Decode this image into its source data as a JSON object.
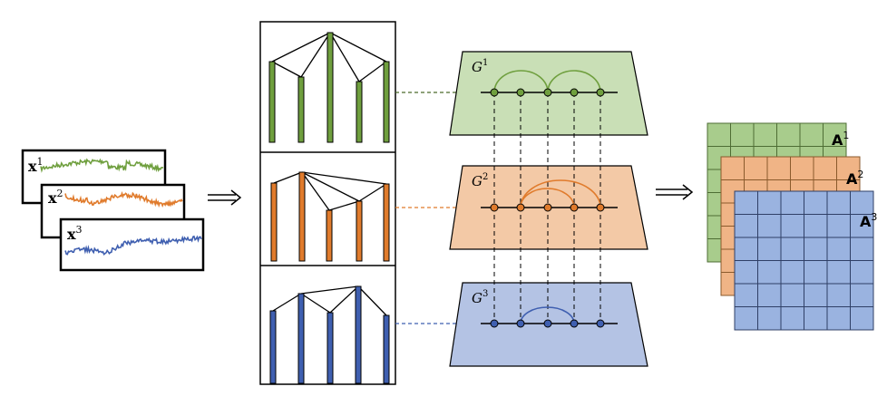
{
  "colors": {
    "green": "#6f9f3e",
    "green_light": "#c9dfb6",
    "green_cell": "#a8cc8c",
    "orange": "#e07b2c",
    "orange_light": "#f3c9a6",
    "orange_cell": "#f0b486",
    "blue": "#3f5fb0",
    "blue_light": "#b4c3e4",
    "blue_cell": "#9ab3e0",
    "line": "#000000"
  },
  "series": [
    {
      "base": "x",
      "sup": "1",
      "color_key": "green"
    },
    {
      "base": "x",
      "sup": "2",
      "color_key": "orange"
    },
    {
      "base": "x",
      "sup": "3",
      "color_key": "blue"
    }
  ],
  "graphs": [
    {
      "base": "G",
      "sup": "1",
      "color_key": "green"
    },
    {
      "base": "G",
      "sup": "2",
      "color_key": "orange"
    },
    {
      "base": "G",
      "sup": "3",
      "color_key": "blue"
    }
  ],
  "matrices": [
    {
      "base": "A",
      "sup": "1",
      "color_key": "green"
    },
    {
      "base": "A",
      "sup": "2",
      "color_key": "orange"
    },
    {
      "base": "A",
      "sup": "3",
      "color_key": "blue"
    }
  ],
  "arrows": [
    "⟹",
    "⟹"
  ]
}
